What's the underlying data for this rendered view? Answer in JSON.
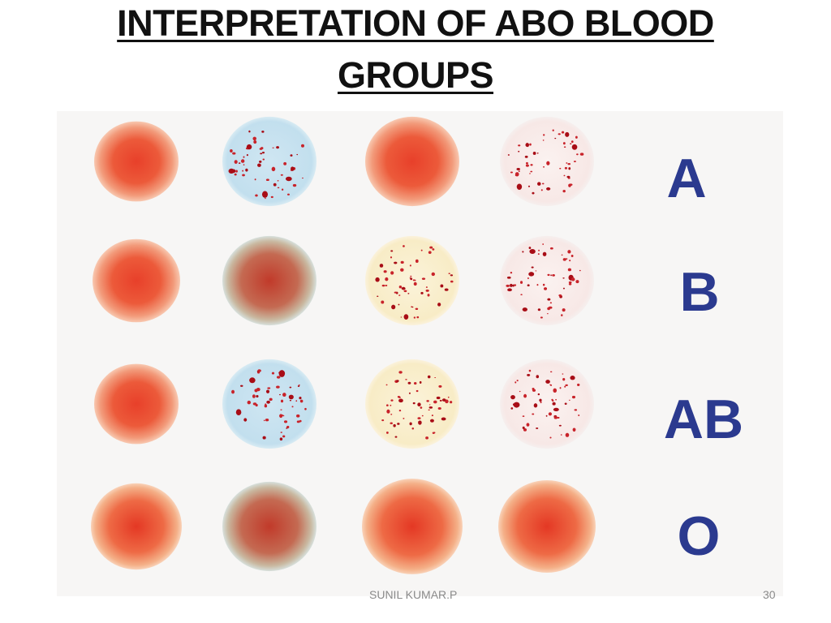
{
  "slide": {
    "title_line1": "INTERPRETATION OF ABO BLOOD",
    "title_line2": "GROUPS"
  },
  "figure": {
    "rows": [
      {
        "label": "A",
        "wells": [
          "smooth",
          "agglutinated-blue",
          "smooth",
          "agglutinated-clear"
        ]
      },
      {
        "label": "B",
        "wells": [
          "smooth",
          "smooth-brown",
          "agglutinated-yellow",
          "agglutinated-clear"
        ]
      },
      {
        "label": "AB",
        "wells": [
          "smooth",
          "agglutinated-blue",
          "agglutinated-yellow",
          "agglutinated-clear"
        ]
      },
      {
        "label": "O",
        "wells": [
          "smooth",
          "smooth-brown",
          "smooth",
          "smooth"
        ]
      }
    ]
  },
  "footer": {
    "author": "SUNIL KUMAR.P",
    "slide_number": "30"
  },
  "colors": {
    "label_blue": "#2b3a8f",
    "blood_red": "#e8452a",
    "clump_red": "#b8121a"
  }
}
